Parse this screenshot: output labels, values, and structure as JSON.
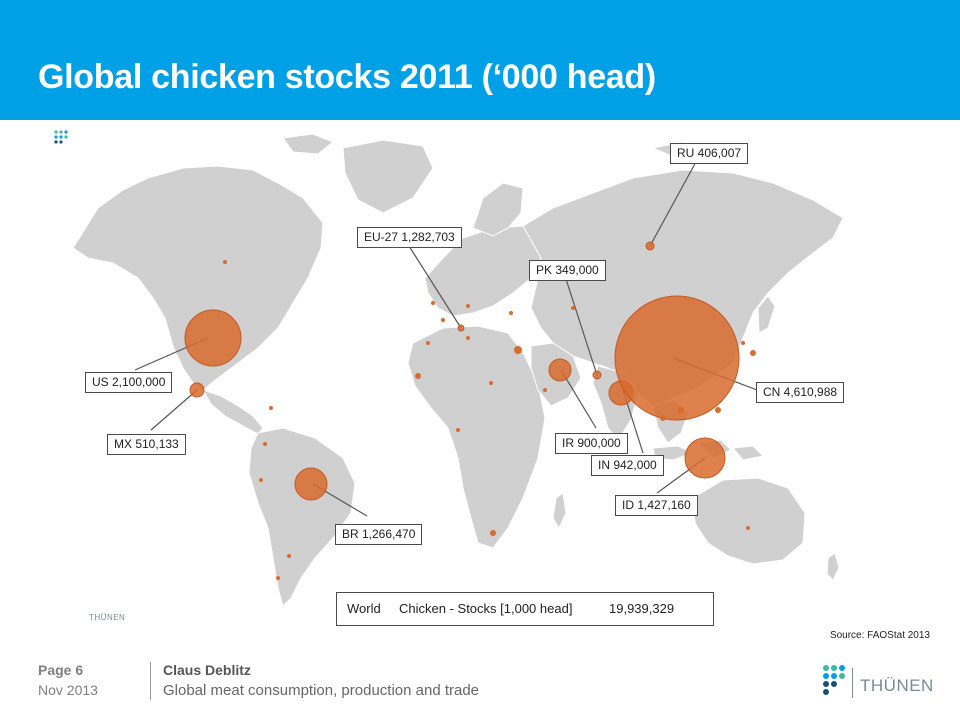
{
  "slide": {
    "title": "Global chicken stocks 2011 (‘000 head)",
    "source": "Source: FAOStat 2013"
  },
  "labels": {
    "us": "US  2,100,000",
    "mx": "MX  510,133",
    "br": "BR  1,266,470",
    "eu": "EU-27  1,282,703",
    "ru": "RU  406,007",
    "pk": "PK  349,000",
    "ir": "IR  900,000",
    "in": "IN  942,000",
    "cn": "CN  4,610,988",
    "id": "ID  1,427,160"
  },
  "world": {
    "name": "World",
    "measure": "Chicken - Stocks [1,000 head]",
    "value": "19,939,329"
  },
  "map_logo_text": "THÜNEN",
  "footer": {
    "page": "Page 6",
    "date": "Nov 2013",
    "author": "Claus Deblitz",
    "subtitle": "Global meat consumption, production and trade",
    "logo_text": "THÜNEN"
  },
  "colors": {
    "header": "#00a0e6",
    "land": "#d0d0d0",
    "bubble": "#d96b2e"
  }
}
